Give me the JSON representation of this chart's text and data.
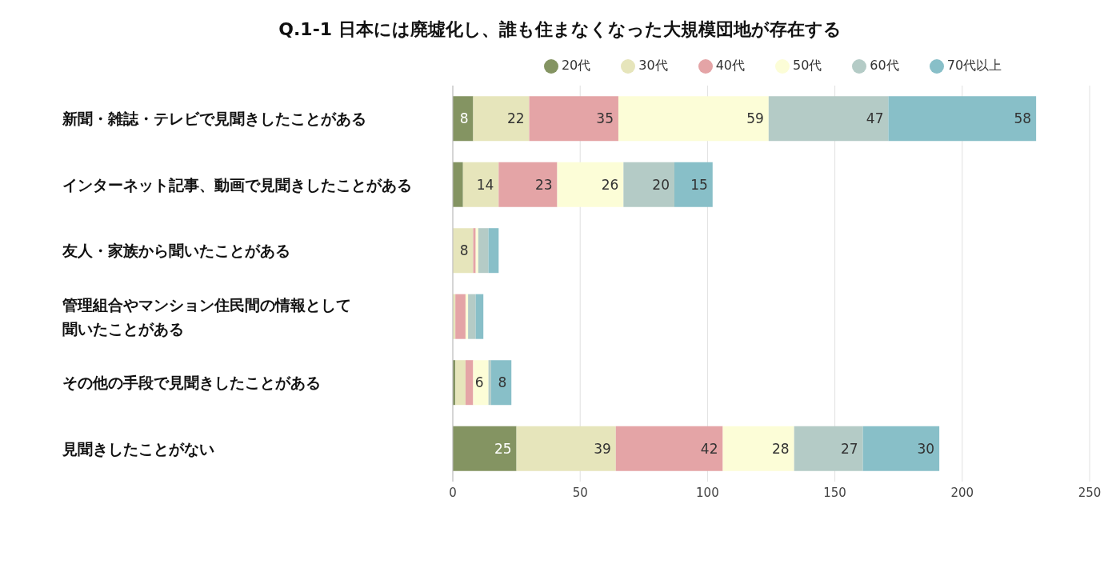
{
  "chart_data": {
    "type": "bar",
    "orientation": "horizontal",
    "stacked": true,
    "title": "Q.1-1 日本には廃墟化し、誰も住まなくなった大規模団地が存在する",
    "categories": [
      "新聞・雑誌・テレビで見聞きしたことがある",
      "インターネット記事、動画で見聞きしたことがある",
      "友人・家族から聞いたことがある",
      "管理組合やマンション住民間の情報として聞いたことがある",
      "その他の手段で見聞きしたことがある",
      "見聞きしたことがない"
    ],
    "series": [
      {
        "name": "20代",
        "color": "#849462",
        "values": [
          8,
          4,
          0,
          0,
          1,
          25
        ],
        "value_labels": [
          "8",
          null,
          null,
          null,
          null,
          "25"
        ]
      },
      {
        "name": "30代",
        "color": "#e6e5bb",
        "values": [
          22,
          14,
          8,
          1,
          4,
          39
        ],
        "value_labels": [
          "22",
          "14",
          "8",
          null,
          null,
          "39"
        ]
      },
      {
        "name": "40代",
        "color": "#e4a4a6",
        "values": [
          35,
          23,
          1,
          4,
          3,
          42
        ],
        "value_labels": [
          "35",
          "23",
          null,
          null,
          null,
          "42"
        ]
      },
      {
        "name": "50代",
        "color": "#fcfdd7",
        "values": [
          59,
          26,
          1,
          1,
          6,
          28
        ],
        "value_labels": [
          "59",
          "26",
          null,
          null,
          "6",
          "28"
        ]
      },
      {
        "name": "60代",
        "color": "#b4cbc6",
        "values": [
          47,
          20,
          4,
          3,
          1,
          27
        ],
        "value_labels": [
          "47",
          "20",
          null,
          null,
          null,
          "27"
        ]
      },
      {
        "name": "70代以上",
        "color": "#88bfc8",
        "values": [
          58,
          15,
          4,
          3,
          8,
          30
        ],
        "value_labels": [
          "58",
          "15",
          null,
          null,
          "8",
          "30"
        ]
      }
    ],
    "xlim": [
      0,
      250
    ],
    "xticks": [
      0,
      50,
      100,
      150,
      200,
      250
    ],
    "grid": "x",
    "legend": "top",
    "marker": "circle"
  }
}
